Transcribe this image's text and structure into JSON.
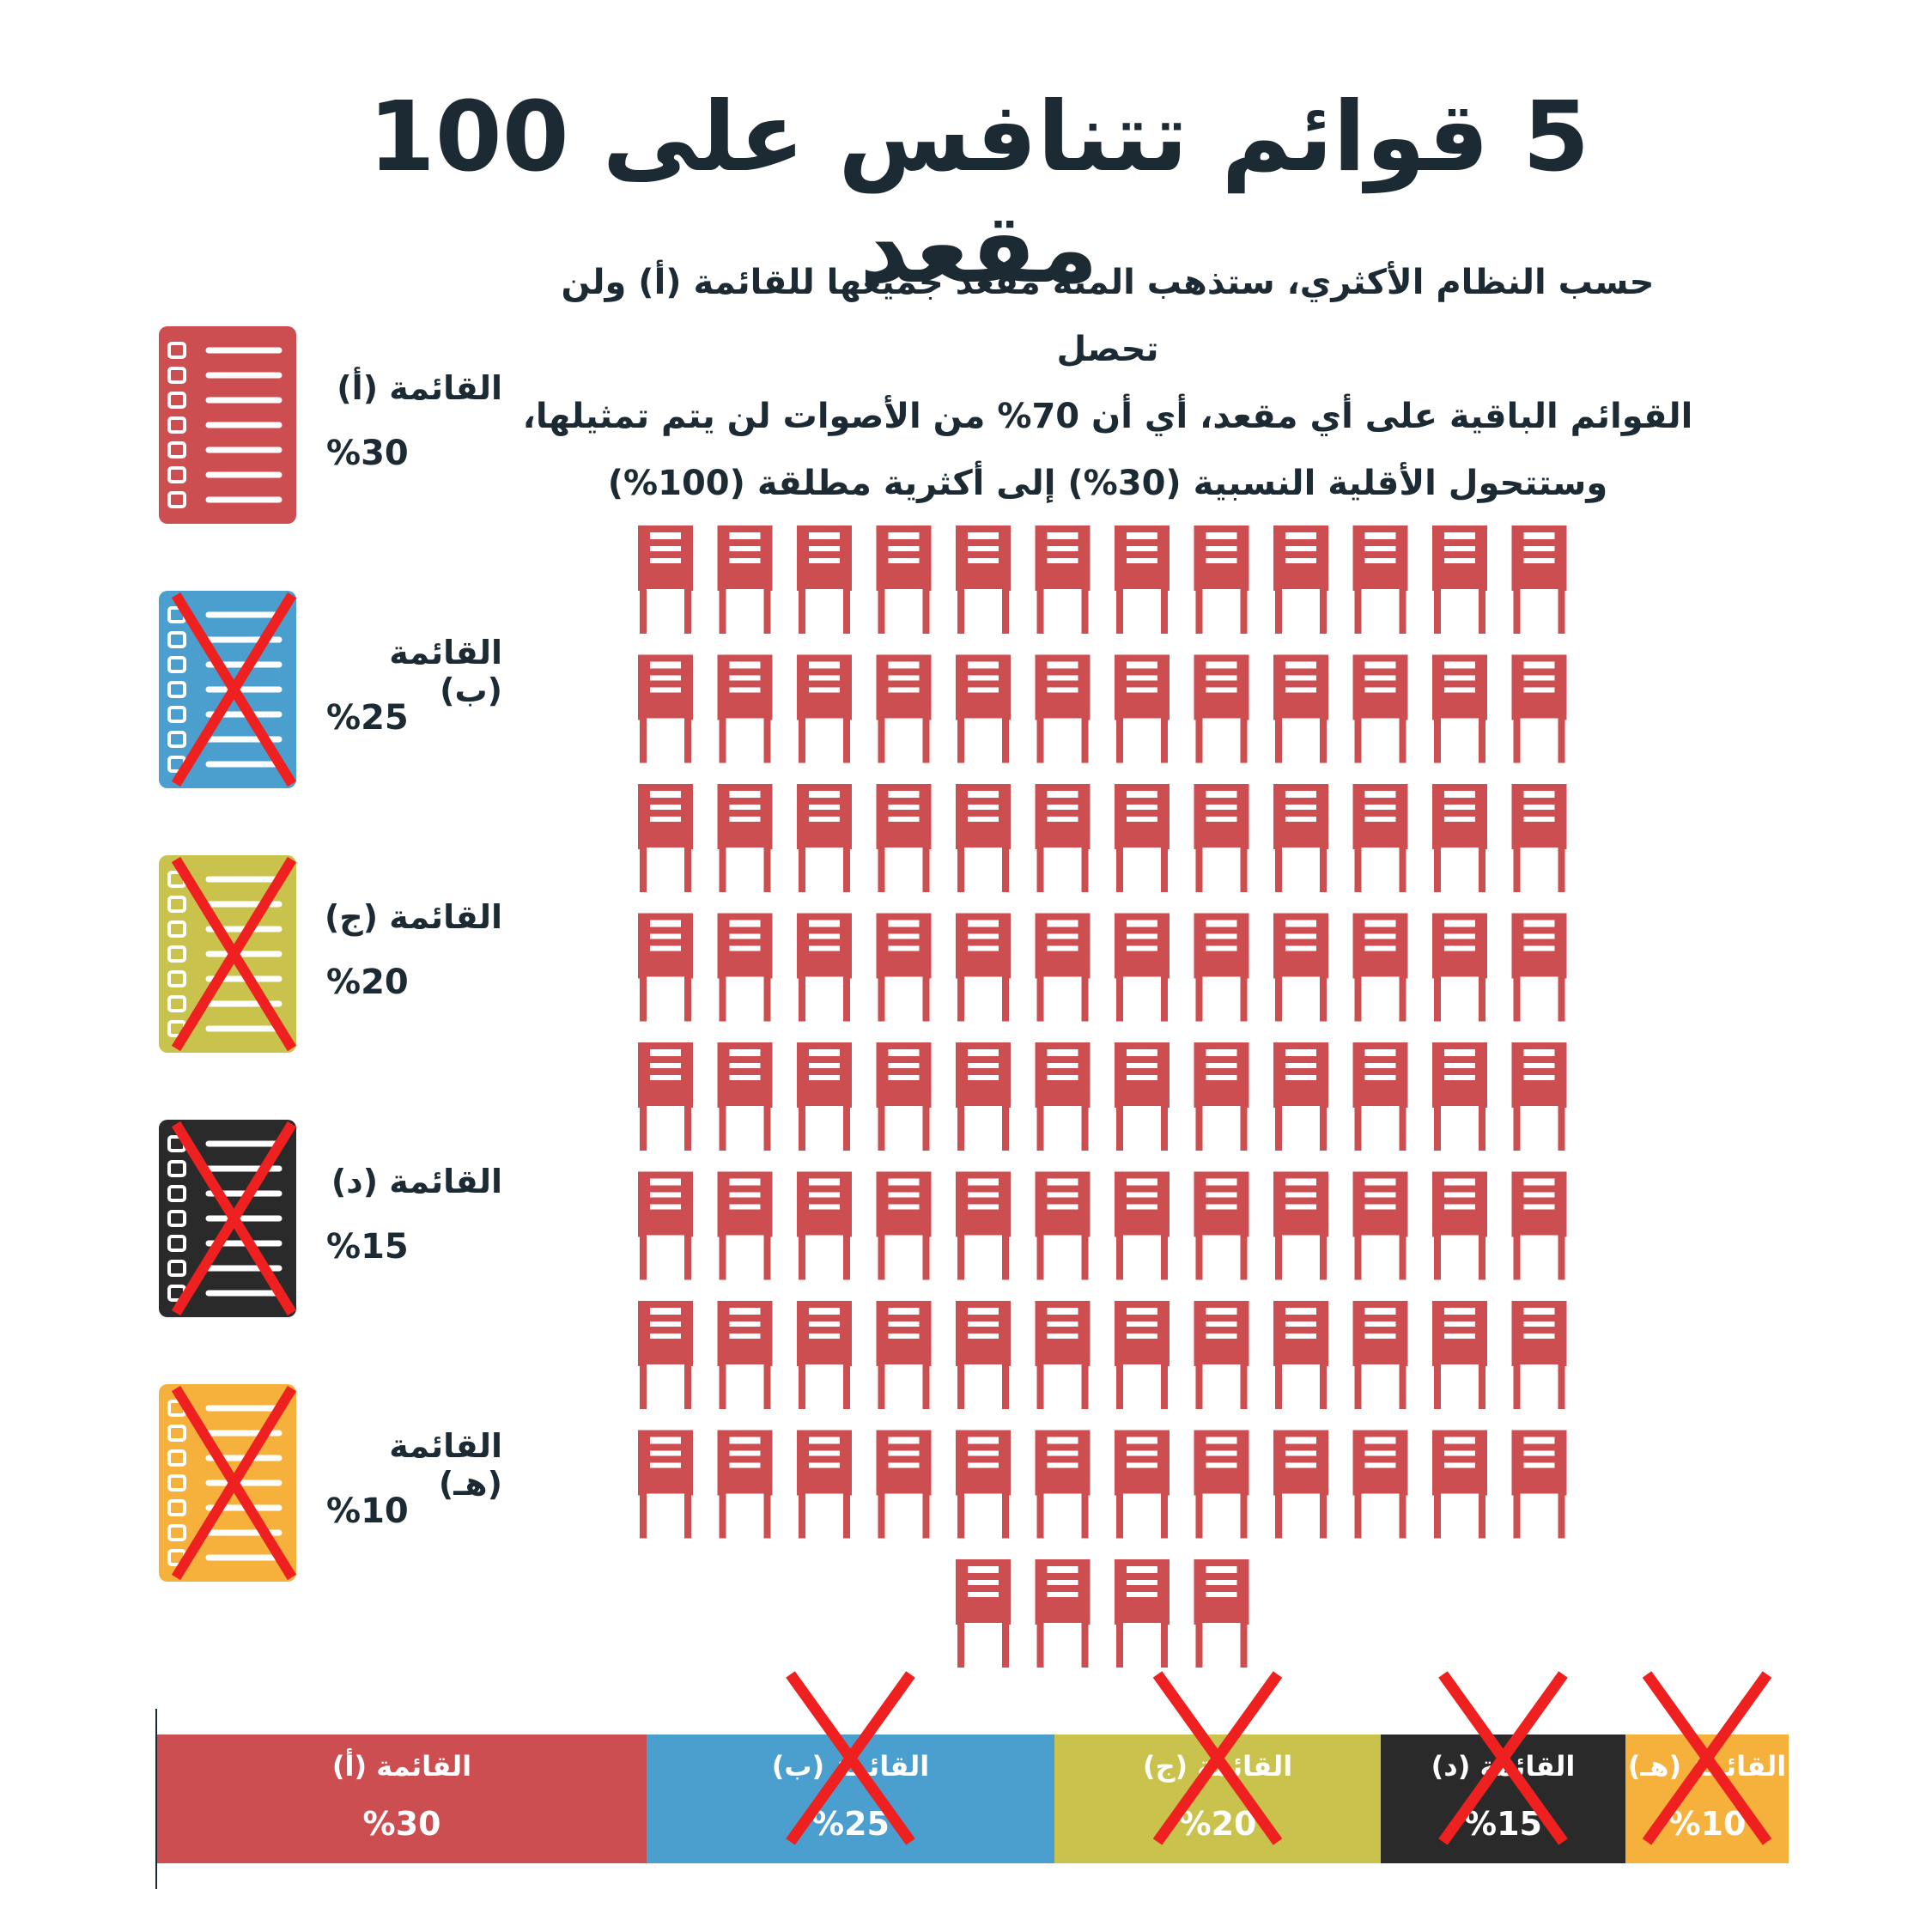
{
  "title": "5 قوائم تتنافس على 100 مقعد",
  "description": [
    "حسب النظام الأكثري، ستذهب المئة مقعد  جميعها للقائمة (أ) ولن تحصل",
    "القوائم الباقية على أي مقعد، أي أن 70% من الأصوات لن يتم تمثيلها،",
    "وستتحول الأقلية النسبية (30%) إلى أكثرية مطلقة (100%)"
  ],
  "lists": [
    {
      "name": "القائمة (أ)",
      "pct_label": "%30",
      "value": 30,
      "color": "#cc4e51",
      "eliminated": false
    },
    {
      "name": "القائمة (ب)",
      "pct_label": "%25",
      "value": 25,
      "color": "#4b9fcf",
      "eliminated": true
    },
    {
      "name": "القائمة (ج)",
      "pct_label": "%20",
      "value": 20,
      "color": "#c9c24c",
      "eliminated": true
    },
    {
      "name": "القائمة (د)",
      "pct_label": "%15",
      "value": 15,
      "color": "#2a2a2a",
      "eliminated": true
    },
    {
      "name": "القائمة (هـ)",
      "pct_label": "%10",
      "value": 10,
      "color": "#f6b03c",
      "eliminated": true
    }
  ],
  "seats": {
    "total": 100,
    "winner_list": "القائمة (أ)",
    "color": "#cc4e51",
    "icon": "chair-icon"
  },
  "cross_color": "#ee2020",
  "legend_icon": "ballot-list-icon",
  "chart_data": {
    "type": "bar",
    "orientation": "stacked-horizontal",
    "categories": [
      "القائمة (أ)",
      "القائمة (ب)",
      "القائمة (ج)",
      "القائمة (د)",
      "القائمة (هـ)"
    ],
    "values": [
      30,
      25,
      20,
      15,
      10
    ],
    "seats_won": [
      100,
      0,
      0,
      0,
      0
    ]
  }
}
